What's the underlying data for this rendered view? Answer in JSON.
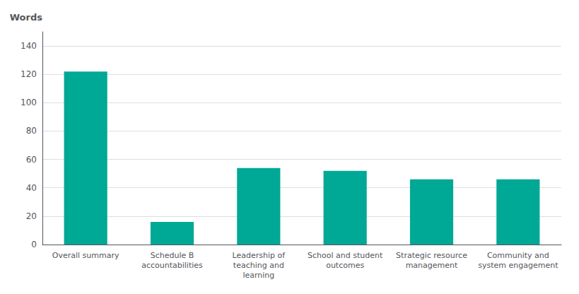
{
  "chart_data": {
    "type": "bar",
    "ylabel": "Words",
    "categories": [
      "Overall summary",
      "Schedule B\naccountabilities",
      "Leadership of\nteaching and\nlearning",
      "School and student\noutcomes",
      "Strategic resource\nmanagement",
      "Community and\nsystem engagement"
    ],
    "values": [
      122,
      16,
      54,
      52,
      46,
      46
    ],
    "color": "#00A896",
    "ylim": [
      0,
      150
    ],
    "yticks": [
      0,
      20,
      40,
      60,
      80,
      100,
      120,
      140
    ],
    "grid": true
  }
}
